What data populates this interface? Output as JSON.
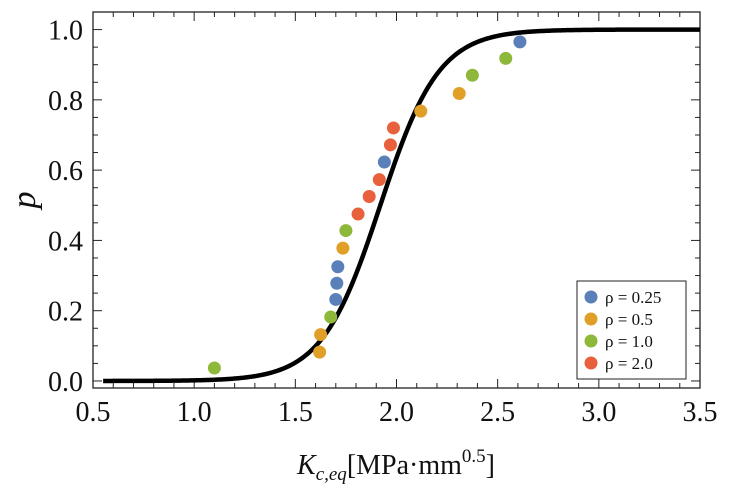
{
  "chart_data": {
    "type": "scatter",
    "title": "",
    "xlabel": {
      "symbol": "K",
      "subscript": "c,eq",
      "unit": "[MPa·mm",
      "exponent": "0.5",
      "close": "]"
    },
    "ylabel": "p",
    "xlim": [
      0.5,
      3.5
    ],
    "ylim": [
      -0.02,
      1.05
    ],
    "x_ticks": [
      "0.5",
      "1.0",
      "1.5",
      "2.0",
      "2.5",
      "3.0",
      "3.5"
    ],
    "y_ticks": [
      "0.0",
      "0.2",
      "0.4",
      "0.6",
      "0.8",
      "1.0"
    ],
    "fit_curve": {
      "type": "logistic",
      "mu": 1.92,
      "s": 0.145,
      "color": "#000000"
    },
    "legend_position": "bottom-right",
    "series": [
      {
        "name": "ρ = 0.25",
        "color": "#5b7fb8",
        "points": [
          [
            1.7,
            0.232
          ],
          [
            1.705,
            0.278
          ],
          [
            1.71,
            0.325
          ],
          [
            1.94,
            0.623
          ],
          [
            2.61,
            0.965
          ]
        ]
      },
      {
        "name": "ρ = 0.5",
        "color": "#e0a028",
        "points": [
          [
            1.62,
            0.082
          ],
          [
            1.625,
            0.132
          ],
          [
            1.735,
            0.378
          ],
          [
            2.12,
            0.768
          ],
          [
            2.31,
            0.818
          ]
        ]
      },
      {
        "name": "ρ = 1.0",
        "color": "#8db83a",
        "points": [
          [
            1.1,
            0.037
          ],
          [
            1.675,
            0.182
          ],
          [
            1.75,
            0.428
          ],
          [
            2.375,
            0.87
          ],
          [
            2.54,
            0.918
          ]
        ]
      },
      {
        "name": "ρ = 2.0",
        "color": "#e8613c",
        "points": [
          [
            1.81,
            0.475
          ],
          [
            1.865,
            0.525
          ],
          [
            1.915,
            0.573
          ],
          [
            1.97,
            0.672
          ],
          [
            1.985,
            0.72
          ]
        ]
      }
    ]
  }
}
